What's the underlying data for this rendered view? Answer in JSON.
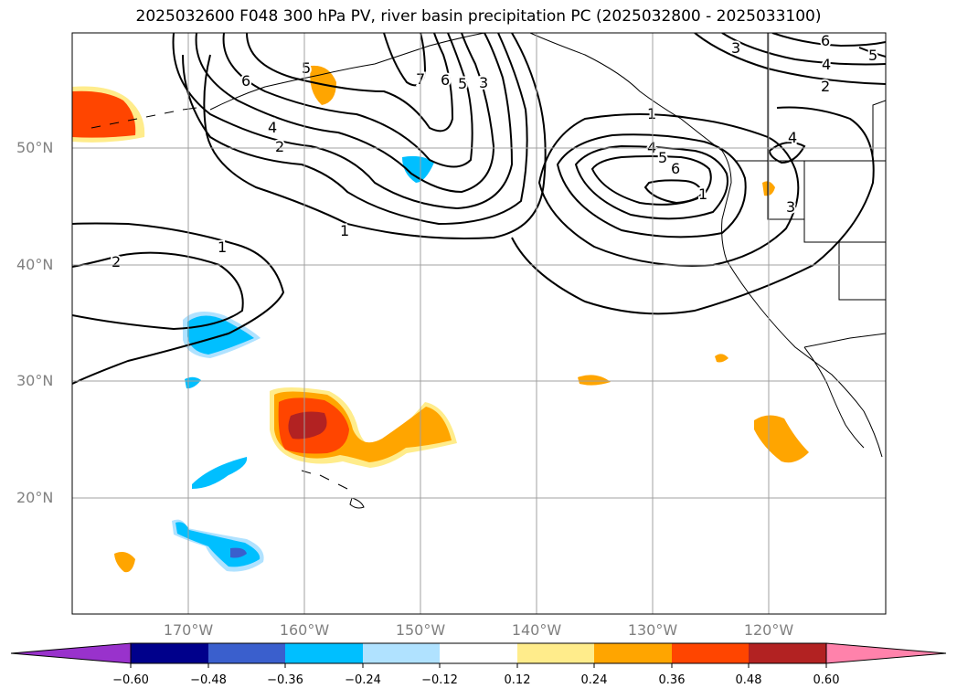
{
  "title": "2025032600 F048 300 hPa PV, river basin precipitation PC (2025032800 - 2025033100)",
  "lat_labels": [
    "50°N",
    "40°N",
    "30°N",
    "20°N"
  ],
  "lon_labels": [
    "170°W",
    "160°W",
    "150°W",
    "140°W",
    "130°W",
    "120°W"
  ],
  "colorbar": {
    "ticks": [
      "−0.60",
      "−0.48",
      "−0.36",
      "−0.24",
      "−0.12",
      "0.12",
      "0.24",
      "0.36",
      "0.48",
      "0.60"
    ],
    "colors": [
      "#9932cc",
      "#00008b",
      "#3a5fcd",
      "#00bfff",
      "#b0e2ff",
      "#ffffff",
      "#ffec8b",
      "#ffa500",
      "#ff4500",
      "#b22222",
      "#ff82ab"
    ]
  },
  "contour_labels": [
    "2",
    "1",
    "4",
    "2",
    "6",
    "5",
    "7",
    "6",
    "5",
    "3",
    "1",
    "4",
    "5",
    "6",
    "1",
    "3",
    "6",
    "4",
    "2",
    "5",
    "4",
    "3",
    "1"
  ],
  "map": {
    "lat_range": [
      10,
      60
    ],
    "lon_range": [
      -180,
      -110
    ],
    "projection": "PlateCarree"
  }
}
